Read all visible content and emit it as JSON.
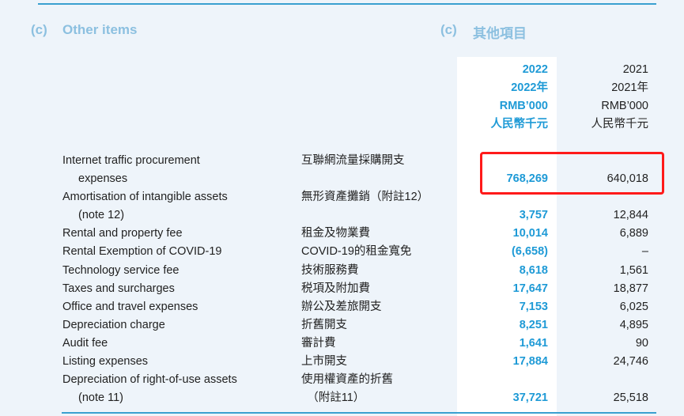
{
  "section": {
    "label": "(c)",
    "title_en": "Other items",
    "label_zh": "(c)",
    "title_zh": "其他項目"
  },
  "columns": {
    "current": [
      "2022",
      "2022年",
      "RMB’000",
      "人民幣千元"
    ],
    "prior": [
      "2021",
      "2021年",
      "RMB’000",
      "人民幣千元"
    ]
  },
  "rows": [
    {
      "en": [
        "Internet traffic procurement",
        "expenses"
      ],
      "zh": [
        "互聯網流量採購開支"
      ],
      "v2022": "768,269",
      "v2021": "640,018",
      "highlighted": true
    },
    {
      "en": [
        "Amortisation of intangible assets",
        "(note 12)"
      ],
      "zh": [
        "無形資產攤銷（附註12）"
      ],
      "v2022": "3,757",
      "v2021": "12,844"
    },
    {
      "en": [
        "Rental and property fee"
      ],
      "zh": [
        "租金及物業費"
      ],
      "v2022": "10,014",
      "v2021": "6,889"
    },
    {
      "en": [
        "Rental Exemption of COVID-19"
      ],
      "zh": [
        "COVID-19的租金寬免"
      ],
      "v2022": "(6,658)",
      "v2021": "–"
    },
    {
      "en": [
        "Technology service fee"
      ],
      "zh": [
        "技術服務費"
      ],
      "v2022": "8,618",
      "v2021": "1,561"
    },
    {
      "en": [
        "Taxes and surcharges"
      ],
      "zh": [
        "税項及附加費"
      ],
      "v2022": "17,647",
      "v2021": "18,877"
    },
    {
      "en": [
        "Office and travel expenses"
      ],
      "zh": [
        "辦公及差旅開支"
      ],
      "v2022": "7,153",
      "v2021": "6,025"
    },
    {
      "en": [
        "Depreciation charge"
      ],
      "zh": [
        "折舊開支"
      ],
      "v2022": "8,251",
      "v2021": "4,895"
    },
    {
      "en": [
        "Audit fee"
      ],
      "zh": [
        "審計費"
      ],
      "v2022": "1,641",
      "v2021": "90"
    },
    {
      "en": [
        "Listing expenses"
      ],
      "zh": [
        "上市開支"
      ],
      "v2022": "17,884",
      "v2021": "24,746"
    },
    {
      "en": [
        "Depreciation of right-of-use assets",
        "(note 11)"
      ],
      "zh": [
        "使用權資產的折舊",
        "　（附註11）"
      ],
      "v2022": "37,721",
      "v2021": "25,518"
    }
  ],
  "colors": {
    "accent": "#1e9ad6",
    "highlight_box": "#ff1a1a",
    "background": "#eef4fa"
  }
}
